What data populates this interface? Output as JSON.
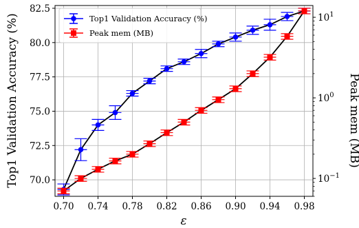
{
  "chart_data": {
    "type": "line",
    "xlabel": "ε",
    "ylabel_left": "Top1 Validation Accuracy (%)",
    "ylabel_right": "Peak mem (MB)",
    "xlim": [
      0.69,
      0.99
    ],
    "ylim_left": [
      68.8,
      82.7
    ],
    "ylim_right": [
      0.06,
      14
    ],
    "right_scale": "log",
    "x_ticks": [
      "0.70",
      "0.74",
      "0.78",
      "0.82",
      "0.86",
      "0.90",
      "0.94",
      "0.98"
    ],
    "y_ticks_left": [
      "70.0",
      "72.5",
      "75.0",
      "77.5",
      "80.0",
      "82.5"
    ],
    "y_ticks_right": [
      {
        "base": "10",
        "exp": "−1",
        "value": 0.1
      },
      {
        "base": "10",
        "exp": "0",
        "value": 1
      },
      {
        "base": "10",
        "exp": "1",
        "value": 10
      }
    ],
    "grid": true,
    "legend_position": "top-left",
    "series": [
      {
        "name": "Top1 Validation Accuracy (%)",
        "axis": "left",
        "color": "#0000ff",
        "marker": "circle",
        "x": [
          0.7,
          0.72,
          0.74,
          0.76,
          0.78,
          0.8,
          0.82,
          0.84,
          0.86,
          0.88,
          0.9,
          0.92,
          0.94,
          0.96,
          0.98
        ],
        "y": [
          69.3,
          72.2,
          74.0,
          74.9,
          76.3,
          77.2,
          78.1,
          78.6,
          79.2,
          79.9,
          80.4,
          80.9,
          81.3,
          81.9,
          82.3
        ],
        "err": [
          0.4,
          0.8,
          0.4,
          0.5,
          0.2,
          0.2,
          0.2,
          0.2,
          0.3,
          0.2,
          0.3,
          0.3,
          0.4,
          0.3,
          0.2
        ]
      },
      {
        "name": "Peak mem (MB)",
        "axis": "right",
        "color": "#ff0000",
        "marker": "square",
        "x": [
          0.7,
          0.72,
          0.74,
          0.76,
          0.78,
          0.8,
          0.82,
          0.84,
          0.86,
          0.88,
          0.9,
          0.92,
          0.94,
          0.96,
          0.98
        ],
        "y": [
          0.07,
          0.1,
          0.13,
          0.165,
          0.2,
          0.27,
          0.37,
          0.5,
          0.7,
          0.95,
          1.3,
          2.0,
          3.2,
          5.8,
          12.0
        ],
        "err_frac": 0.08
      }
    ]
  }
}
